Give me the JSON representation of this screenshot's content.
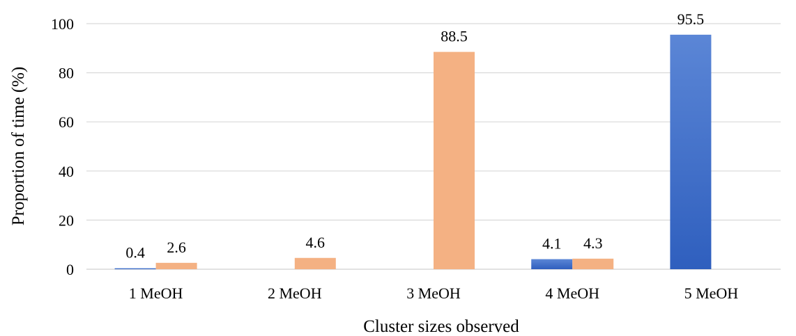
{
  "chart_data": {
    "type": "bar",
    "title": "",
    "xlabel": "Cluster sizes observed",
    "ylabel": "Proportion of time (%)",
    "categories": [
      "1 MeOH",
      "2 MeOH",
      "3 MeOH",
      "4 MeOH",
      "5 MeOH"
    ],
    "ylim": [
      0,
      100
    ],
    "yticks": [
      0,
      20,
      40,
      60,
      80,
      100
    ],
    "grid": true,
    "legend": "none",
    "series": [
      {
        "color": "#4472C4",
        "values": [
          0.4,
          0,
          0,
          4.1,
          95.5
        ],
        "labels": [
          "0.4",
          "",
          "",
          "4.1",
          "95.5"
        ]
      },
      {
        "color": "#F4B183",
        "values": [
          2.6,
          4.6,
          88.5,
          4.3,
          0
        ],
        "labels": [
          "2.6",
          "4.6",
          "88.5",
          "4.3",
          ""
        ]
      }
    ]
  }
}
